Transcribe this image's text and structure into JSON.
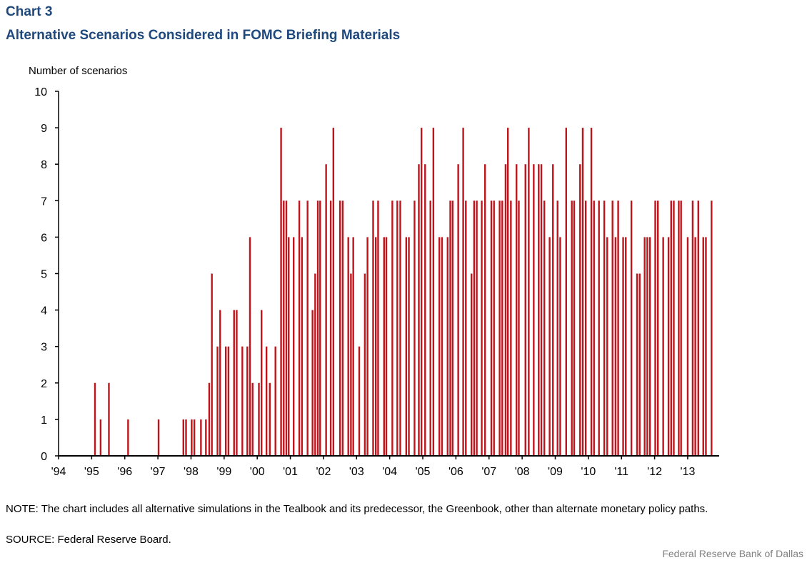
{
  "header": {
    "chart_number": "Chart 3",
    "title": "Alternative Scenarios Considered in FOMC Briefing Materials"
  },
  "footer": {
    "note": "NOTE: The chart includes all alternative simulations in the Tealbook and its predecessor, the Greenbook, other than alternate monetary policy paths.",
    "source": "SOURCE: Federal Reserve Board.",
    "credit": "Federal Reserve Bank of Dallas"
  },
  "chart_data": {
    "type": "bar",
    "title": "Alternative Scenarios Considered in FOMC Briefing Materials",
    "xlabel": "",
    "ylabel": "Number of scenarios",
    "ylim": [
      0,
      10
    ],
    "xlim": [
      1994,
      2013.95
    ],
    "yticks": [
      "0",
      "1",
      "2",
      "3",
      "4",
      "5",
      "6",
      "7",
      "8",
      "9",
      "10"
    ],
    "xticks": [
      "'94",
      "'95",
      "'96",
      "'97",
      "'98",
      "'99",
      "'00",
      "'01",
      "'02",
      "'03",
      "'04",
      "'05",
      "'06",
      "'07",
      "'08",
      "'09",
      "'10",
      "'11",
      "'12",
      "'13"
    ],
    "grid": false,
    "color": "#c0141c",
    "bars": [
      {
        "x": 1995.1,
        "y": 2
      },
      {
        "x": 1995.27,
        "y": 1
      },
      {
        "x": 1995.52,
        "y": 2
      },
      {
        "x": 1996.1,
        "y": 1
      },
      {
        "x": 1997.02,
        "y": 1
      },
      {
        "x": 1997.77,
        "y": 1
      },
      {
        "x": 1997.85,
        "y": 1
      },
      {
        "x": 1998.02,
        "y": 1
      },
      {
        "x": 1998.1,
        "y": 1
      },
      {
        "x": 1998.3,
        "y": 1
      },
      {
        "x": 1998.45,
        "y": 1
      },
      {
        "x": 1998.55,
        "y": 2
      },
      {
        "x": 1998.63,
        "y": 5
      },
      {
        "x": 1998.8,
        "y": 3
      },
      {
        "x": 1998.88,
        "y": 4
      },
      {
        "x": 1999.05,
        "y": 3
      },
      {
        "x": 1999.13,
        "y": 3
      },
      {
        "x": 1999.3,
        "y": 4
      },
      {
        "x": 1999.38,
        "y": 4
      },
      {
        "x": 1999.55,
        "y": 3
      },
      {
        "x": 1999.7,
        "y": 3
      },
      {
        "x": 1999.78,
        "y": 6
      },
      {
        "x": 1999.86,
        "y": 2
      },
      {
        "x": 2000.05,
        "y": 2
      },
      {
        "x": 2000.13,
        "y": 4
      },
      {
        "x": 2000.28,
        "y": 3
      },
      {
        "x": 2000.38,
        "y": 2
      },
      {
        "x": 2000.55,
        "y": 3
      },
      {
        "x": 2000.72,
        "y": 9
      },
      {
        "x": 2000.8,
        "y": 7
      },
      {
        "x": 2000.88,
        "y": 7
      },
      {
        "x": 2000.95,
        "y": 6
      },
      {
        "x": 2001.1,
        "y": 6
      },
      {
        "x": 2001.27,
        "y": 7
      },
      {
        "x": 2001.35,
        "y": 6
      },
      {
        "x": 2001.52,
        "y": 7
      },
      {
        "x": 2001.67,
        "y": 4
      },
      {
        "x": 2001.75,
        "y": 5
      },
      {
        "x": 2001.83,
        "y": 7
      },
      {
        "x": 2001.9,
        "y": 7
      },
      {
        "x": 2002.08,
        "y": 8
      },
      {
        "x": 2002.22,
        "y": 7
      },
      {
        "x": 2002.3,
        "y": 9
      },
      {
        "x": 2002.5,
        "y": 7
      },
      {
        "x": 2002.58,
        "y": 7
      },
      {
        "x": 2002.75,
        "y": 6
      },
      {
        "x": 2002.83,
        "y": 5
      },
      {
        "x": 2002.9,
        "y": 6
      },
      {
        "x": 2003.08,
        "y": 3
      },
      {
        "x": 2003.25,
        "y": 5
      },
      {
        "x": 2003.33,
        "y": 6
      },
      {
        "x": 2003.5,
        "y": 7
      },
      {
        "x": 2003.58,
        "y": 6
      },
      {
        "x": 2003.65,
        "y": 7
      },
      {
        "x": 2003.83,
        "y": 6
      },
      {
        "x": 2003.9,
        "y": 6
      },
      {
        "x": 2004.08,
        "y": 7
      },
      {
        "x": 2004.23,
        "y": 7
      },
      {
        "x": 2004.32,
        "y": 7
      },
      {
        "x": 2004.5,
        "y": 6
      },
      {
        "x": 2004.58,
        "y": 6
      },
      {
        "x": 2004.75,
        "y": 7
      },
      {
        "x": 2004.88,
        "y": 8
      },
      {
        "x": 2004.96,
        "y": 9
      },
      {
        "x": 2005.07,
        "y": 8
      },
      {
        "x": 2005.23,
        "y": 7
      },
      {
        "x": 2005.32,
        "y": 9
      },
      {
        "x": 2005.5,
        "y": 6
      },
      {
        "x": 2005.58,
        "y": 6
      },
      {
        "x": 2005.75,
        "y": 6
      },
      {
        "x": 2005.83,
        "y": 7
      },
      {
        "x": 2005.9,
        "y": 7
      },
      {
        "x": 2006.07,
        "y": 8
      },
      {
        "x": 2006.22,
        "y": 9
      },
      {
        "x": 2006.3,
        "y": 7
      },
      {
        "x": 2006.47,
        "y": 5
      },
      {
        "x": 2006.55,
        "y": 7
      },
      {
        "x": 2006.63,
        "y": 7
      },
      {
        "x": 2006.78,
        "y": 7
      },
      {
        "x": 2006.88,
        "y": 8
      },
      {
        "x": 2007.07,
        "y": 7
      },
      {
        "x": 2007.15,
        "y": 7
      },
      {
        "x": 2007.32,
        "y": 7
      },
      {
        "x": 2007.4,
        "y": 7
      },
      {
        "x": 2007.5,
        "y": 8
      },
      {
        "x": 2007.57,
        "y": 9
      },
      {
        "x": 2007.66,
        "y": 7
      },
      {
        "x": 2007.83,
        "y": 8
      },
      {
        "x": 2007.9,
        "y": 7
      },
      {
        "x": 2008.1,
        "y": 8
      },
      {
        "x": 2008.2,
        "y": 9
      },
      {
        "x": 2008.35,
        "y": 8
      },
      {
        "x": 2008.5,
        "y": 8
      },
      {
        "x": 2008.58,
        "y": 8
      },
      {
        "x": 2008.67,
        "y": 7
      },
      {
        "x": 2008.83,
        "y": 6
      },
      {
        "x": 2008.93,
        "y": 8
      },
      {
        "x": 2009.07,
        "y": 7
      },
      {
        "x": 2009.15,
        "y": 6
      },
      {
        "x": 2009.33,
        "y": 9
      },
      {
        "x": 2009.5,
        "y": 7
      },
      {
        "x": 2009.57,
        "y": 7
      },
      {
        "x": 2009.75,
        "y": 8
      },
      {
        "x": 2009.83,
        "y": 9
      },
      {
        "x": 2009.92,
        "y": 7
      },
      {
        "x": 2010.09,
        "y": 9
      },
      {
        "x": 2010.17,
        "y": 7
      },
      {
        "x": 2010.32,
        "y": 7
      },
      {
        "x": 2010.48,
        "y": 7
      },
      {
        "x": 2010.57,
        "y": 6
      },
      {
        "x": 2010.73,
        "y": 7
      },
      {
        "x": 2010.82,
        "y": 6
      },
      {
        "x": 2010.9,
        "y": 7
      },
      {
        "x": 2011.05,
        "y": 6
      },
      {
        "x": 2011.13,
        "y": 6
      },
      {
        "x": 2011.3,
        "y": 7
      },
      {
        "x": 2011.47,
        "y": 5
      },
      {
        "x": 2011.55,
        "y": 5
      },
      {
        "x": 2011.7,
        "y": 6
      },
      {
        "x": 2011.78,
        "y": 6
      },
      {
        "x": 2011.86,
        "y": 6
      },
      {
        "x": 2012.02,
        "y": 7
      },
      {
        "x": 2012.1,
        "y": 7
      },
      {
        "x": 2012.26,
        "y": 6
      },
      {
        "x": 2012.42,
        "y": 6
      },
      {
        "x": 2012.5,
        "y": 7
      },
      {
        "x": 2012.58,
        "y": 7
      },
      {
        "x": 2012.73,
        "y": 7
      },
      {
        "x": 2012.8,
        "y": 7
      },
      {
        "x": 2013.0,
        "y": 6
      },
      {
        "x": 2013.15,
        "y": 7
      },
      {
        "x": 2013.23,
        "y": 6
      },
      {
        "x": 2013.32,
        "y": 7
      },
      {
        "x": 2013.47,
        "y": 6
      },
      {
        "x": 2013.55,
        "y": 6
      },
      {
        "x": 2013.72,
        "y": 7
      }
    ]
  }
}
